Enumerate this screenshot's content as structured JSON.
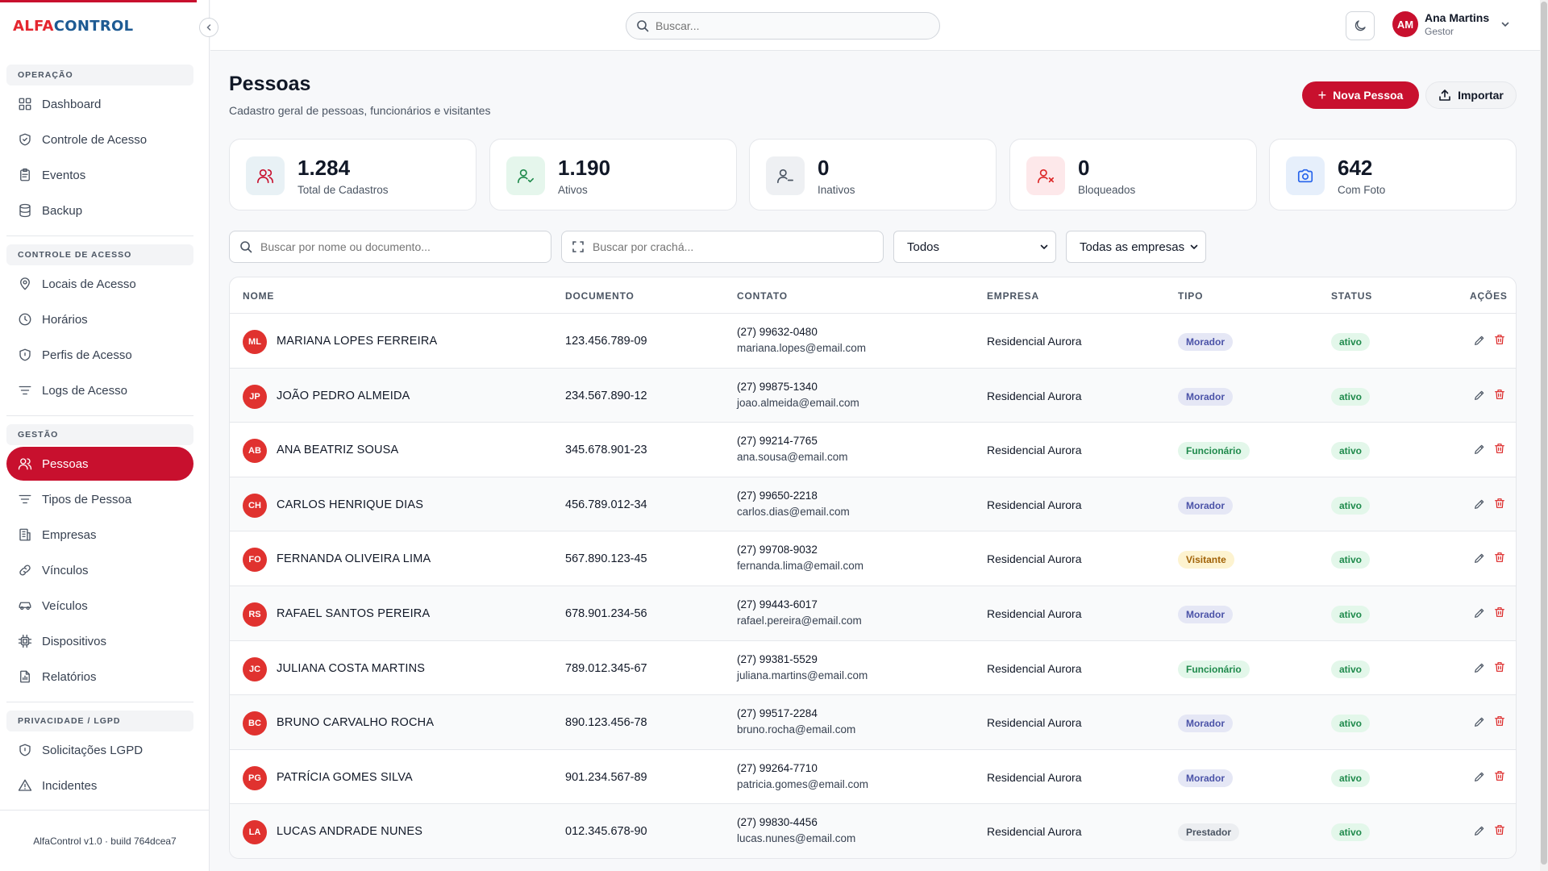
{
  "app": {
    "logo_part1": "ALFA",
    "logo_part2": "CONTROL",
    "version": "AlfaControl v1.0 · build 764dcea7"
  },
  "colors": {
    "primary": "#c8102e",
    "logo_red": "#e4262f",
    "logo_blue": "#1d5a93"
  },
  "sidebar": {
    "sections": [
      {
        "title": "OPERAÇÃO",
        "items": [
          {
            "label": "Dashboard",
            "icon": "dashboard-icon"
          },
          {
            "label": "Controle de Acesso",
            "icon": "shield-check-icon"
          },
          {
            "label": "Eventos",
            "icon": "clipboard-icon"
          },
          {
            "label": "Backup",
            "icon": "database-icon"
          }
        ]
      },
      {
        "title": "CONTROLE DE ACESSO",
        "items": [
          {
            "label": "Locais de Acesso",
            "icon": "map-pin-icon"
          },
          {
            "label": "Horários",
            "icon": "clock-icon"
          },
          {
            "label": "Perfis de Acesso",
            "icon": "shield-icon"
          },
          {
            "label": "Logs de Acesso",
            "icon": "filter-lines-icon"
          }
        ]
      },
      {
        "title": "GESTÃO",
        "items": [
          {
            "label": "Pessoas",
            "icon": "users-icon",
            "active": true
          },
          {
            "label": "Tipos de Pessoa",
            "icon": "filter-lines-icon"
          },
          {
            "label": "Empresas",
            "icon": "building-icon"
          },
          {
            "label": "Vínculos",
            "icon": "link-icon"
          },
          {
            "label": "Veículos",
            "icon": "car-icon"
          },
          {
            "label": "Dispositivos",
            "icon": "cpu-icon"
          },
          {
            "label": "Relatórios",
            "icon": "file-chart-icon"
          }
        ]
      },
      {
        "title": "PRIVACIDADE / LGPD",
        "items": [
          {
            "label": "Solicitações LGPD",
            "icon": "shield-icon"
          },
          {
            "label": "Incidentes",
            "icon": "alert-triangle-icon"
          }
        ]
      }
    ]
  },
  "header": {
    "search_placeholder": "Buscar...",
    "user_initials": "AM",
    "user_name": "Ana Martins",
    "user_role": "Gestor"
  },
  "page": {
    "title": "Pessoas",
    "subtitle": "Cadastro geral de pessoas, funcionários e visitantes",
    "new_button": "Nova Pessoa",
    "import_button": "Importar"
  },
  "stats": [
    {
      "value": "1.284",
      "label": "Total de Cadastros",
      "icon": "users-icon",
      "bg": "#e8f1f5",
      "fg": "#c8102e"
    },
    {
      "value": "1.190",
      "label": "Ativos",
      "icon": "user-check-icon",
      "bg": "#e5f6ec",
      "fg": "#1f8a4c"
    },
    {
      "value": "0",
      "label": "Inativos",
      "icon": "user-minus-icon",
      "bg": "#eef0f3",
      "fg": "#4b5563"
    },
    {
      "value": "0",
      "label": "Bloqueados",
      "icon": "user-x-icon",
      "bg": "#fde8ea",
      "fg": "#dc2626"
    },
    {
      "value": "642",
      "label": "Com Foto",
      "icon": "camera-icon",
      "bg": "#e6effb",
      "fg": "#2563eb"
    }
  ],
  "filters": {
    "name_placeholder": "Buscar por nome ou documento...",
    "badge_placeholder": "Buscar por crachá...",
    "type_value": "Todos",
    "company_value": "Todas as empresas"
  },
  "table": {
    "headers": [
      "NOME",
      "DOCUMENTO",
      "CONTATO",
      "EMPRESA",
      "TIPO",
      "STATUS",
      "AÇÕES"
    ],
    "rows": [
      {
        "initials": "ML",
        "name": "MARIANA LOPES FERREIRA",
        "document": "123.456.789-09",
        "phone": "(27) 99632-0480",
        "email": "mariana.lopes@email.com",
        "company": "Residencial Aurora",
        "type": "Morador",
        "status": "ativo"
      },
      {
        "initials": "JP",
        "name": "JOÃO PEDRO ALMEIDA",
        "document": "234.567.890-12",
        "phone": "(27) 99875-1340",
        "email": "joao.almeida@email.com",
        "company": "Residencial Aurora",
        "type": "Morador",
        "status": "ativo"
      },
      {
        "initials": "AB",
        "name": "ANA BEATRIZ SOUSA",
        "document": "345.678.901-23",
        "phone": "(27) 99214-7765",
        "email": "ana.sousa@email.com",
        "company": "Residencial Aurora",
        "type": "Funcionário",
        "status": "ativo"
      },
      {
        "initials": "CH",
        "name": "CARLOS HENRIQUE DIAS",
        "document": "456.789.012-34",
        "phone": "(27) 99650-2218",
        "email": "carlos.dias@email.com",
        "company": "Residencial Aurora",
        "type": "Morador",
        "status": "ativo"
      },
      {
        "initials": "FO",
        "name": "FERNANDA OLIVEIRA LIMA",
        "document": "567.890.123-45",
        "phone": "(27) 99708-9032",
        "email": "fernanda.lima@email.com",
        "company": "Residencial Aurora",
        "type": "Visitante",
        "status": "ativo"
      },
      {
        "initials": "RS",
        "name": "RAFAEL SANTOS PEREIRA",
        "document": "678.901.234-56",
        "phone": "(27) 99443-6017",
        "email": "rafael.pereira@email.com",
        "company": "Residencial Aurora",
        "type": "Morador",
        "status": "ativo"
      },
      {
        "initials": "JC",
        "name": "JULIANA COSTA MARTINS",
        "document": "789.012.345-67",
        "phone": "(27) 99381-5529",
        "email": "juliana.martins@email.com",
        "company": "Residencial Aurora",
        "type": "Funcionário",
        "status": "ativo"
      },
      {
        "initials": "BC",
        "name": "BRUNO CARVALHO ROCHA",
        "document": "890.123.456-78",
        "phone": "(27) 99517-2284",
        "email": "bruno.rocha@email.com",
        "company": "Residencial Aurora",
        "type": "Morador",
        "status": "ativo"
      },
      {
        "initials": "PG",
        "name": "PATRÍCIA GOMES SILVA",
        "document": "901.234.567-89",
        "phone": "(27) 99264-7710",
        "email": "patricia.gomes@email.com",
        "company": "Residencial Aurora",
        "type": "Morador",
        "status": "ativo"
      },
      {
        "initials": "LA",
        "name": "LUCAS ANDRADE NUNES",
        "document": "012.345.678-90",
        "phone": "(27) 99830-4456",
        "email": "lucas.nunes@email.com",
        "company": "Residencial Aurora",
        "type": "Prestador",
        "status": "ativo"
      }
    ]
  }
}
